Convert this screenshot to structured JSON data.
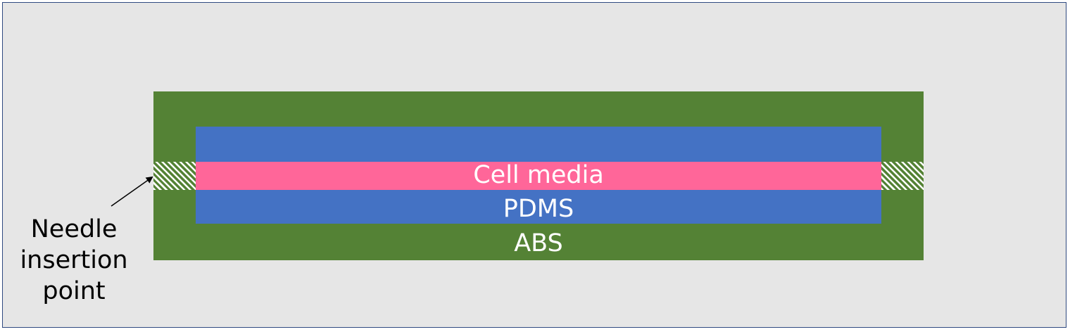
{
  "diagram": {
    "layers": [
      {
        "id": "abs",
        "label": "ABS",
        "color": "#548235"
      },
      {
        "id": "pdms",
        "label": "PDMS",
        "color": "#4472c4"
      },
      {
        "id": "cell_media",
        "label": "Cell media",
        "color": "#ff6699"
      }
    ],
    "annotation": {
      "lines": [
        "Needle",
        "insertion",
        "point"
      ]
    },
    "colors": {
      "background": "#e6e6e6",
      "border": "#2f4a80",
      "hatch": "#ffffff",
      "label_text": "#ffffff",
      "annotation_text": "#000000"
    }
  }
}
